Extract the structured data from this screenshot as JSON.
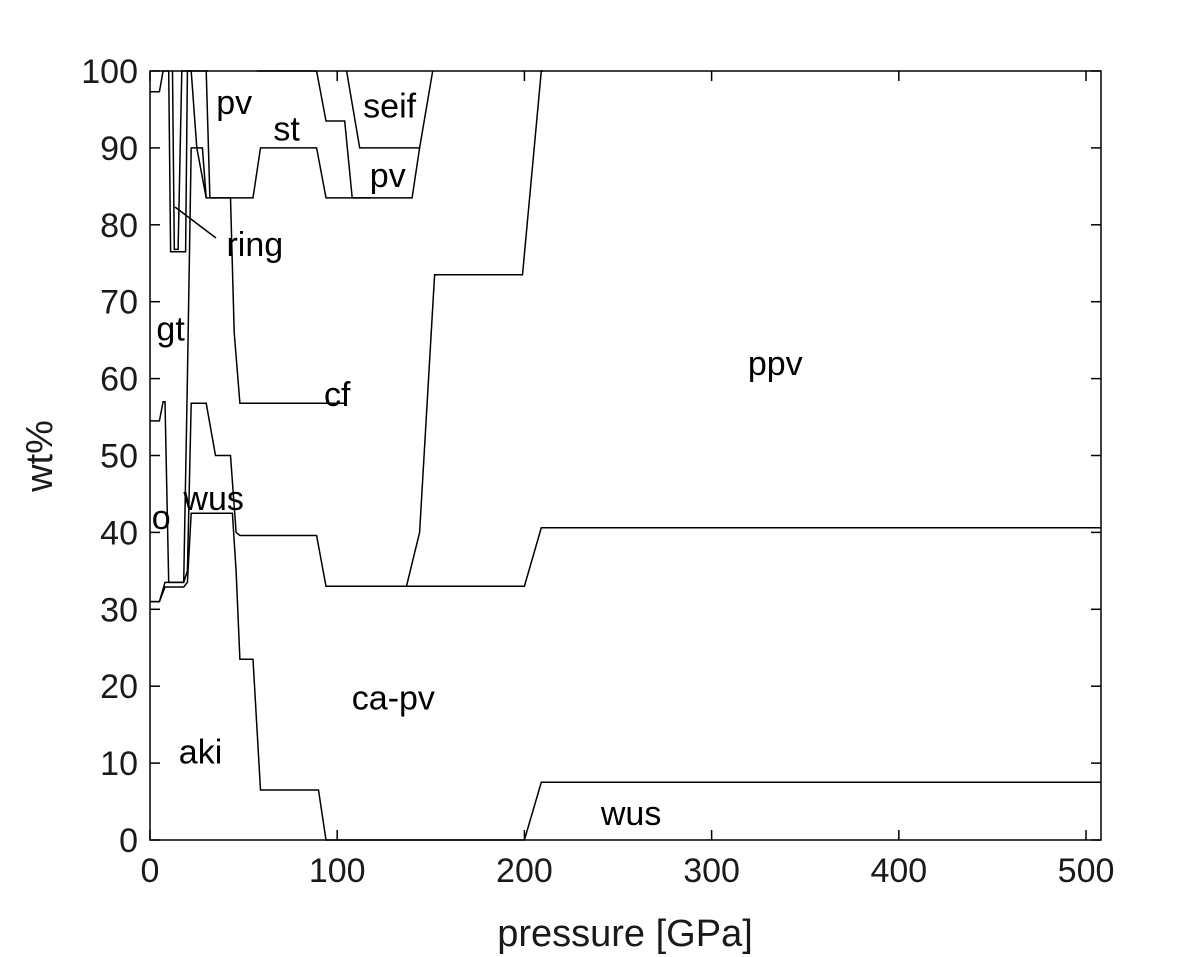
{
  "chart_data": {
    "type": "area",
    "title": "",
    "xlabel": "pressure [GPa]",
    "ylabel": "wt%",
    "xlim": [
      0,
      508
    ],
    "ylim": [
      0,
      100
    ],
    "xticks": [
      0,
      100,
      200,
      300,
      400,
      500
    ],
    "yticks": [
      0,
      10,
      20,
      30,
      40,
      50,
      60,
      70,
      80,
      90,
      100
    ],
    "grid": false,
    "boundaries": [
      {
        "name": "aki-ca-pv",
        "x": [
          0,
          5,
          8,
          10,
          15,
          18,
          20,
          22,
          25,
          30,
          35,
          40,
          44,
          46,
          48,
          55,
          59,
          88,
          90,
          94,
          200,
          209,
          508
        ],
        "y": [
          31,
          31,
          32.9,
          32.9,
          32.9,
          32.9,
          33.5,
          42.5,
          42.5,
          42.5,
          42.5,
          42.5,
          42.5,
          35,
          23.5,
          23.5,
          6.5,
          6.5,
          6.5,
          0,
          0,
          7.5,
          7.5
        ]
      },
      {
        "name": "ca-pv-cf",
        "x": [
          0,
          5,
          8,
          10,
          12,
          15,
          18,
          20,
          22,
          25,
          30,
          35,
          40,
          43,
          46,
          48,
          57,
          59,
          89,
          94,
          136,
          200,
          209,
          508
        ],
        "y": [
          31,
          31,
          33.5,
          33.5,
          33.5,
          33.5,
          33.5,
          35,
          56.8,
          56.8,
          56.8,
          50,
          50,
          50,
          40,
          39.6,
          39.6,
          39.6,
          39.6,
          33,
          33,
          33,
          40.6,
          40.6
        ]
      },
      {
        "name": "o-gt",
        "x": [
          0,
          5,
          7,
          8,
          10,
          12,
          18,
          20,
          22,
          25,
          30,
          35,
          40,
          43,
          45,
          48,
          52,
          55,
          58,
          60,
          95,
          100,
          105
        ],
        "y": [
          54.5,
          54.5,
          57,
          57,
          33.5,
          33.5,
          33.5,
          60,
          90,
          90,
          83.5,
          83.5,
          83.5,
          83.5,
          66,
          56.8,
          56.8,
          56.8,
          56.8,
          56.8,
          56.8,
          56.8,
          56.8
        ]
      },
      {
        "name": "gt-ring",
        "x": [
          0,
          5,
          7,
          10,
          11,
          14,
          16,
          19,
          20,
          22,
          25,
          28,
          30
        ],
        "y": [
          97.3,
          97.3,
          100,
          100,
          76.5,
          76.5,
          76.5,
          76.5,
          100,
          100,
          90,
          90,
          83.5
        ]
      },
      {
        "name": "ring-wedge",
        "x": [
          12,
          13,
          14,
          15,
          17,
          20
        ],
        "y": [
          100,
          76.8,
          76.8,
          76.8,
          100,
          100
        ]
      },
      {
        "name": "pv-region",
        "x": [
          30,
          32,
          40,
          50,
          55,
          59,
          60,
          89,
          94,
          109,
          113,
          140,
          144
        ],
        "y": [
          100,
          83.5,
          83.5,
          83.5,
          83.5,
          90,
          90,
          90,
          83.5,
          83.5,
          83.5,
          83.5,
          90
        ]
      },
      {
        "name": "pv-upper",
        "x": [
          20,
          24,
          30,
          31
        ],
        "y": [
          100,
          100,
          100,
          100
        ]
      },
      {
        "name": "st-seif",
        "x": [
          89,
          94,
          104,
          108,
          113,
          118
        ],
        "y": [
          100,
          93.5,
          93.5,
          83.5,
          83.5,
          83.5
        ]
      },
      {
        "name": "seif-pv",
        "x": [
          105,
          112,
          114,
          120,
          140,
          144,
          151
        ],
        "y": [
          100,
          90,
          90,
          90,
          90,
          90,
          100
        ]
      },
      {
        "name": "cf-ppv",
        "x": [
          137,
          144,
          152,
          199,
          209,
          210
        ],
        "y": [
          33,
          40,
          73.5,
          73.5,
          100,
          100
        ]
      },
      {
        "name": "pv-seif-top",
        "x": [
          57,
          60,
          89
        ],
        "y": [
          100,
          100,
          100
        ]
      }
    ],
    "regions": [
      {
        "label": "pv",
        "x": 45,
        "y": 96
      },
      {
        "label": "st",
        "x": 73,
        "y": 92.5
      },
      {
        "label": "seif",
        "x": 128,
        "y": 95.5
      },
      {
        "label": "pv",
        "x": 127,
        "y": 86.5
      },
      {
        "label": "ring",
        "x": 56,
        "y": 77.5
      },
      {
        "label": "gt",
        "x": 11,
        "y": 66.5
      },
      {
        "label": "cf",
        "x": 100,
        "y": 58
      },
      {
        "label": "ppv",
        "x": 334,
        "y": 62
      },
      {
        "label": "wus",
        "x": 34,
        "y": 44.5
      },
      {
        "label": "o",
        "x": 6,
        "y": 42
      },
      {
        "label": "ca-pv",
        "x": 130,
        "y": 18.5
      },
      {
        "label": "aki",
        "x": 27,
        "y": 11.5
      },
      {
        "label": "wus",
        "x": 257,
        "y": 3.5
      }
    ]
  }
}
